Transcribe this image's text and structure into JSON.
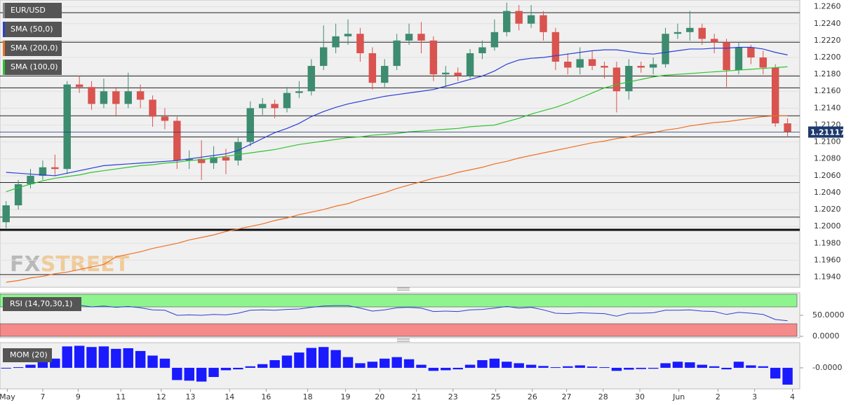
{
  "chart_data": [
    {
      "type": "candlestick",
      "symbol": "EUR/USD",
      "watermark": [
        "FX",
        "STREET"
      ],
      "up_color": "#3d8c70",
      "down_color": "#d9534f",
      "open": [
        1.2005,
        1.2025,
        1.205,
        1.206,
        1.207,
        1.2068,
        1.2168,
        1.2165,
        1.2145,
        1.216,
        1.2145,
        1.216,
        1.215,
        1.213,
        1.2125,
        1.2078,
        1.208,
        1.2075,
        1.2082,
        1.2078,
        1.21,
        1.214,
        1.2145,
        1.214,
        1.2158,
        1.216,
        1.219,
        1.2212,
        1.2225,
        1.2228,
        1.2205,
        1.217,
        1.219,
        1.222,
        1.2228,
        1.222,
        1.218,
        1.2182,
        1.2178,
        1.2205,
        1.2212,
        1.223,
        1.2255,
        1.224,
        1.225,
        1.223,
        1.2195,
        1.2188,
        1.2198,
        1.219,
        1.2188,
        1.216,
        1.219,
        1.2188,
        1.2192,
        1.2228,
        1.223,
        1.2235,
        1.2222,
        1.2218,
        1.2185,
        1.2212,
        1.22,
        1.2188,
        1.2122
      ],
      "high": [
        1.203,
        1.2055,
        1.2068,
        1.2078,
        1.2085,
        1.2172,
        1.2178,
        1.2172,
        1.2175,
        1.2165,
        1.2182,
        1.2168,
        1.2155,
        1.214,
        1.213,
        1.209,
        1.2102,
        1.2095,
        1.2092,
        1.2105,
        1.2148,
        1.2152,
        1.215,
        1.2165,
        1.2172,
        1.2198,
        1.2238,
        1.224,
        1.2245,
        1.2235,
        1.2212,
        1.2198,
        1.2228,
        1.224,
        1.2242,
        1.2225,
        1.219,
        1.2188,
        1.221,
        1.222,
        1.2245,
        1.2265,
        1.2262,
        1.2262,
        1.2255,
        1.2235,
        1.2205,
        1.2212,
        1.2208,
        1.2195,
        1.2195,
        1.2198,
        1.2195,
        1.22,
        1.2235,
        1.224,
        1.2255,
        1.224,
        1.2228,
        1.2222,
        1.2218,
        1.2215,
        1.2208,
        1.2192,
        1.2128
      ],
      "low": [
        1.1998,
        1.202,
        1.2045,
        1.2055,
        1.206,
        1.2062,
        1.2158,
        1.2138,
        1.214,
        1.213,
        1.214,
        1.214,
        1.2118,
        1.2115,
        1.2068,
        1.2068,
        1.2055,
        1.2068,
        1.2062,
        1.2072,
        1.2095,
        1.2132,
        1.2128,
        1.2135,
        1.2152,
        1.2155,
        1.2185,
        1.2205,
        1.2215,
        1.2195,
        1.2162,
        1.2165,
        1.2185,
        1.2215,
        1.2205,
        1.2172,
        1.2165,
        1.2172,
        1.2175,
        1.2198,
        1.2208,
        1.2225,
        1.2232,
        1.2235,
        1.222,
        1.2185,
        1.218,
        1.218,
        1.2185,
        1.2175,
        1.2135,
        1.215,
        1.2182,
        1.218,
        1.2188,
        1.2222,
        1.222,
        1.2215,
        1.2205,
        1.2165,
        1.218,
        1.2192,
        1.218,
        1.2118,
        1.2106
      ],
      "close": [
        1.2025,
        1.205,
        1.206,
        1.207,
        1.2068,
        1.2168,
        1.2165,
        1.2145,
        1.216,
        1.2145,
        1.216,
        1.215,
        1.213,
        1.2125,
        1.2078,
        1.208,
        1.2075,
        1.2082,
        1.2078,
        1.21,
        1.214,
        1.2145,
        1.214,
        1.2158,
        1.216,
        1.219,
        1.2212,
        1.2225,
        1.2228,
        1.2205,
        1.217,
        1.219,
        1.222,
        1.2228,
        1.222,
        1.218,
        1.2182,
        1.2178,
        1.2205,
        1.2212,
        1.223,
        1.2255,
        1.224,
        1.225,
        1.223,
        1.2195,
        1.2188,
        1.2198,
        1.219,
        1.2188,
        1.216,
        1.219,
        1.2188,
        1.2192,
        1.2228,
        1.223,
        1.2235,
        1.2222,
        1.2218,
        1.2185,
        1.2212,
        1.22,
        1.2188,
        1.2122,
        1.2112
      ],
      "series": [
        {
          "name": "SMA (50,0)",
          "color": "#2a3fd6",
          "values": [
            1.2064,
            1.2063,
            1.2062,
            1.2061,
            1.206,
            1.2063,
            1.2066,
            1.2069,
            1.2072,
            1.2073,
            1.2074,
            1.2075,
            1.2076,
            1.2077,
            1.2078,
            1.208,
            1.2082,
            1.2084,
            1.2086,
            1.209,
            1.2097,
            1.2104,
            1.2111,
            1.2116,
            1.2122,
            1.213,
            1.2136,
            1.2141,
            1.2145,
            1.2148,
            1.2151,
            1.2154,
            1.2156,
            1.2158,
            1.216,
            1.2162,
            1.2166,
            1.217,
            1.2174,
            1.2178,
            1.2184,
            1.2192,
            1.2197,
            1.2199,
            1.22,
            1.2202,
            1.2204,
            1.2206,
            1.2208,
            1.2209,
            1.2209,
            1.2207,
            1.2205,
            1.2204,
            1.2206,
            1.2208,
            1.221,
            1.221,
            1.2211,
            1.2211,
            1.2212,
            1.2212,
            1.221,
            1.2206,
            1.2203
          ]
        },
        {
          "name": "SMA (200,0)",
          "color": "#f07024",
          "values": [
            1.1934,
            1.1936,
            1.1939,
            1.1941,
            1.1944,
            1.1946,
            1.1949,
            1.1952,
            1.1955,
            1.1964,
            1.1967,
            1.197,
            1.1974,
            1.1977,
            1.198,
            1.1984,
            1.1987,
            1.199,
            1.1994,
            1.1997,
            1.2,
            1.2003,
            1.2007,
            1.201,
            1.2014,
            1.2017,
            1.202,
            1.2024,
            1.2027,
            1.2032,
            1.2036,
            1.204,
            1.2045,
            1.2049,
            1.2053,
            1.2057,
            1.206,
            1.2064,
            1.2067,
            1.207,
            1.2074,
            1.2077,
            1.2081,
            1.2084,
            1.2087,
            1.209,
            1.2093,
            1.2096,
            1.2099,
            1.2101,
            1.2104,
            1.2106,
            1.2109,
            1.2111,
            1.2114,
            1.2116,
            1.2119,
            1.2121,
            1.2123,
            1.2124,
            1.2126,
            1.2128,
            1.213,
            1.2131,
            1.2131
          ]
        },
        {
          "name": "SMA (100,0)",
          "color": "#2ec42e",
          "values": [
            1.2041,
            1.2046,
            1.205,
            1.2054,
            1.2057,
            1.2059,
            1.2061,
            1.2064,
            1.2066,
            1.2068,
            1.207,
            1.2072,
            1.2073,
            1.2075,
            1.2076,
            1.2078,
            1.2079,
            1.2081,
            1.2083,
            1.2085,
            1.2087,
            1.2089,
            1.2091,
            1.2094,
            1.2097,
            1.2099,
            1.2101,
            1.2103,
            1.2105,
            1.2106,
            1.2108,
            1.2109,
            1.211,
            1.2112,
            1.2113,
            1.2114,
            1.2115,
            1.2116,
            1.2118,
            1.2119,
            1.212,
            1.2124,
            1.2128,
            1.2133,
            1.2137,
            1.2141,
            1.2146,
            1.2152,
            1.2158,
            1.2164,
            1.2168,
            1.2171,
            1.2174,
            1.2177,
            1.2179,
            1.218,
            1.2181,
            1.2182,
            1.2183,
            1.2184,
            1.2185,
            1.2186,
            1.2187,
            1.2188,
            1.2189
          ]
        }
      ],
      "levels": [
        1.2253,
        1.2218,
        1.2178,
        1.2164,
        1.2131,
        1.2106,
        1.2052,
        1.2011,
        1.1943
      ],
      "major_level": 1.1996,
      "last_price": 1.21117,
      "last_price_color": "#1e3a6e",
      "xlim": [
        -0.5,
        65
      ],
      "xticks": [
        {
          "value": 0.1,
          "label": "May"
        },
        {
          "value": 3.0,
          "label": "7"
        },
        {
          "value": 5.9,
          "label": "9"
        },
        {
          "value": 9.4,
          "label": "11"
        },
        {
          "value": 12.7,
          "label": "12"
        },
        {
          "value": 15.1,
          "label": "13"
        },
        {
          "value": 18.3,
          "label": "14"
        },
        {
          "value": 21.3,
          "label": "16"
        },
        {
          "value": 24.7,
          "label": "18"
        },
        {
          "value": 27.8,
          "label": "19"
        },
        {
          "value": 30.6,
          "label": "20"
        },
        {
          "value": 33.6,
          "label": "21"
        },
        {
          "value": 36.6,
          "label": "23"
        },
        {
          "value": 40.1,
          "label": "25"
        },
        {
          "value": 43.1,
          "label": "26"
        },
        {
          "value": 45.9,
          "label": "27"
        },
        {
          "value": 48.9,
          "label": "28"
        },
        {
          "value": 51.9,
          "label": "30"
        },
        {
          "value": 55.1,
          "label": "Jun"
        },
        {
          "value": 58.3,
          "label": "2"
        },
        {
          "value": 61.3,
          "label": "3"
        },
        {
          "value": 64.4,
          "label": "4"
        }
      ],
      "ylim": [
        1.1928,
        1.2268
      ],
      "yticks": [
        {
          "value": 1.194,
          "label": "1.1940"
        },
        {
          "value": 1.196,
          "label": "1.1960"
        },
        {
          "value": 1.198,
          "label": "1.1980"
        },
        {
          "value": 1.2,
          "label": "1.2000"
        },
        {
          "value": 1.202,
          "label": "1.2020"
        },
        {
          "value": 1.204,
          "label": "1.2040"
        },
        {
          "value": 1.206,
          "label": "1.2060"
        },
        {
          "value": 1.208,
          "label": "1.2080"
        },
        {
          "value": 1.21,
          "label": "1.2100"
        },
        {
          "value": 1.212,
          "label": "1.2120"
        },
        {
          "value": 1.214,
          "label": "1.2140"
        },
        {
          "value": 1.216,
          "label": "1.2160"
        },
        {
          "value": 1.218,
          "label": "1.2180"
        },
        {
          "value": 1.22,
          "label": "1.2200"
        },
        {
          "value": 1.222,
          "label": "1.2220"
        },
        {
          "value": 1.224,
          "label": "1.2240"
        },
        {
          "value": 1.226,
          "label": "1.2260"
        }
      ],
      "grid": true
    },
    {
      "type": "line",
      "title": "RSI (14,70,30,1)",
      "ylim": [
        0,
        100
      ],
      "yticks": [
        {
          "value": 50,
          "label": "50.0000"
        },
        {
          "value": 0,
          "label": "0.0000"
        }
      ],
      "upper_band": 70,
      "lower_band": 30,
      "upper_color": "#8ef58e",
      "lower_color": "#f58a8a",
      "series": [
        {
          "color": "#2a3fd6",
          "values": [
            62,
            66,
            67,
            68,
            67,
            75,
            74,
            70,
            72,
            69,
            71,
            68,
            63,
            62,
            50,
            51,
            50,
            52,
            51,
            55,
            62,
            63,
            62,
            64,
            65,
            69,
            72,
            73,
            73,
            67,
            60,
            63,
            68,
            69,
            67,
            59,
            60,
            59,
            63,
            64,
            67,
            71,
            67,
            69,
            63,
            55,
            54,
            56,
            55,
            54,
            48,
            55,
            55,
            56,
            62,
            62,
            63,
            60,
            59,
            52,
            57,
            55,
            52,
            40,
            37
          ]
        }
      ]
    },
    {
      "type": "bar",
      "title": "MOM (20)",
      "color": "#1a1aff",
      "ylim": [
        -0.0062,
        0.008
      ],
      "yticks": [
        {
          "value": 0,
          "label": "-0.0000"
        }
      ],
      "values": [
        -0.0002,
        0.0002,
        0.001,
        0.0022,
        0.003,
        0.007,
        0.0072,
        0.0068,
        0.007,
        0.0062,
        0.0064,
        0.0055,
        0.004,
        0.003,
        -0.004,
        -0.0042,
        -0.0045,
        -0.003,
        -0.0008,
        -0.0005,
        0.0005,
        0.0012,
        0.0025,
        0.004,
        0.005,
        0.0065,
        0.0068,
        0.0058,
        0.0035,
        0.0015,
        0.002,
        0.003,
        0.0035,
        0.0028,
        0.001,
        -0.001,
        -0.0008,
        -0.0005,
        0.001,
        0.0025,
        0.003,
        0.002,
        0.0015,
        0.001,
        0.0006,
        0.0002,
        0.0005,
        0.0008,
        0.0004,
        0.0002,
        -0.001,
        -0.0006,
        -0.0004,
        -0.0003,
        0.0015,
        0.002,
        0.0018,
        0.001,
        0.0005,
        -0.0005,
        0.002,
        0.0008,
        0.0005,
        -0.0035,
        -0.0055
      ]
    }
  ]
}
